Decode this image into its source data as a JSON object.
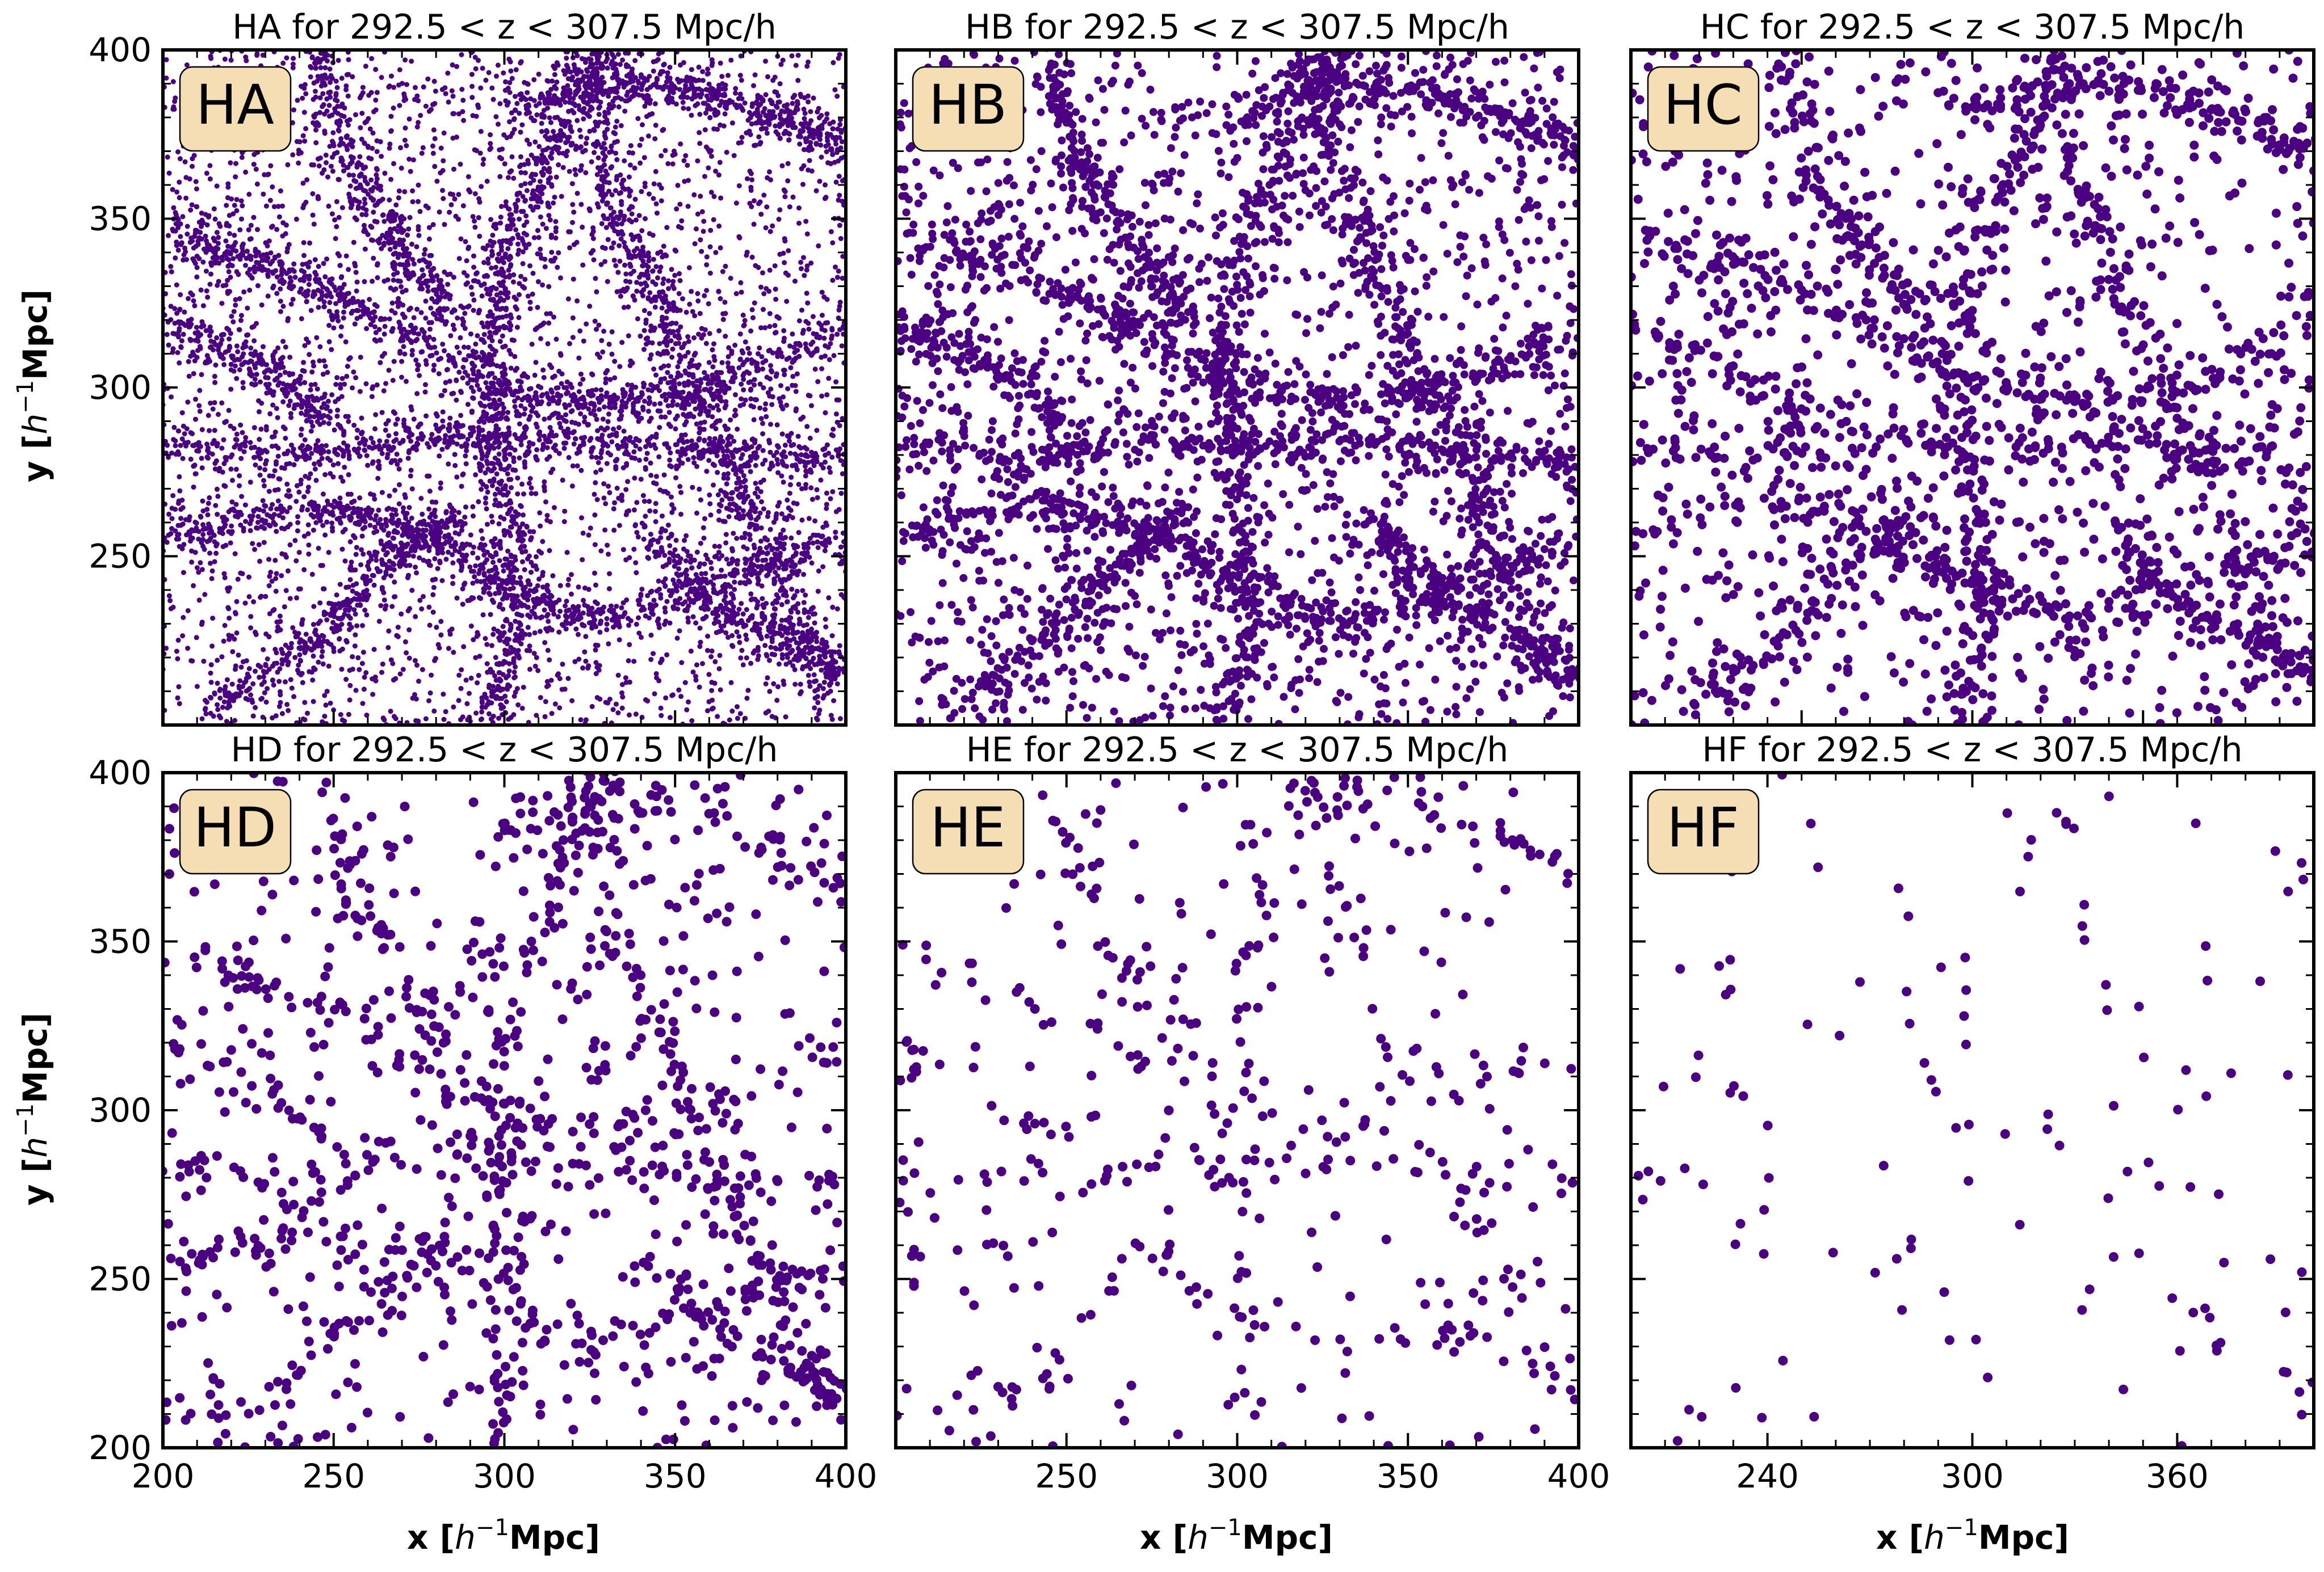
{
  "marker_color": "#4b0082",
  "label_box_fill": "#f5deb3",
  "y_axis_label": {
    "main": "y [",
    "h": "h",
    "exp": "−1",
    "tail": "Mpc]"
  },
  "x_axis_label": {
    "main": "x [",
    "h": "h",
    "exp": "−1",
    "tail": "Mpc]"
  },
  "chart_data": [
    {
      "type": "scatter",
      "panel": "HA",
      "title": "HA for 292.5 < z < 307.5 Mpc/h",
      "box_label": "HA",
      "xlim": [
        200,
        400
      ],
      "ylim": [
        200,
        400
      ],
      "x_ticks": [],
      "y_ticks": [
        250,
        300,
        350,
        400
      ],
      "n_points": 9000,
      "marker_radius": 4.5,
      "seed": 11
    },
    {
      "type": "scatter",
      "panel": "HB",
      "title": "HB for 292.5 < z < 307.5 Mpc/h",
      "box_label": "HB",
      "xlim": [
        200,
        400
      ],
      "ylim": [
        200,
        400
      ],
      "x_ticks": [],
      "y_ticks": [],
      "n_points": 4200,
      "marker_radius": 7,
      "seed": 23
    },
    {
      "type": "scatter",
      "panel": "HC",
      "title": "HC for 292.5 < z < 307.5 Mpc/h",
      "box_label": "HC",
      "xlim": [
        200,
        400
      ],
      "ylim": [
        200,
        400
      ],
      "x_ticks": [],
      "y_ticks": [],
      "n_points": 2300,
      "marker_radius": 8,
      "seed": 37
    },
    {
      "type": "scatter",
      "panel": "HD",
      "title": "HD for 292.5 < z < 307.5 Mpc/h",
      "box_label": "HD",
      "xlim": [
        200,
        400
      ],
      "ylim": [
        200,
        400
      ],
      "x_ticks": [
        200,
        250,
        300,
        350,
        400
      ],
      "y_ticks": [
        200,
        250,
        300,
        350,
        400
      ],
      "n_points": 1250,
      "marker_radius": 8.5,
      "seed": 41
    },
    {
      "type": "scatter",
      "panel": "HE",
      "title": "HE for 292.5 < z < 307.5 Mpc/h",
      "box_label": "HE",
      "xlim": [
        200,
        400
      ],
      "ylim": [
        200,
        400
      ],
      "x_ticks": [
        250,
        300,
        350,
        400
      ],
      "y_ticks": [],
      "n_points": 520,
      "marker_radius": 8.5,
      "seed": 53
    },
    {
      "type": "scatter",
      "panel": "HF",
      "title": "HF for 292.5 < z < 307.5 Mpc/h",
      "box_label": "HF",
      "xlim": [
        200,
        400
      ],
      "ylim": [
        200,
        400
      ],
      "x_ticks": [
        240,
        300,
        360
      ],
      "y_ticks": [],
      "n_points": 130,
      "marker_radius": 8.5,
      "seed": 67
    }
  ]
}
